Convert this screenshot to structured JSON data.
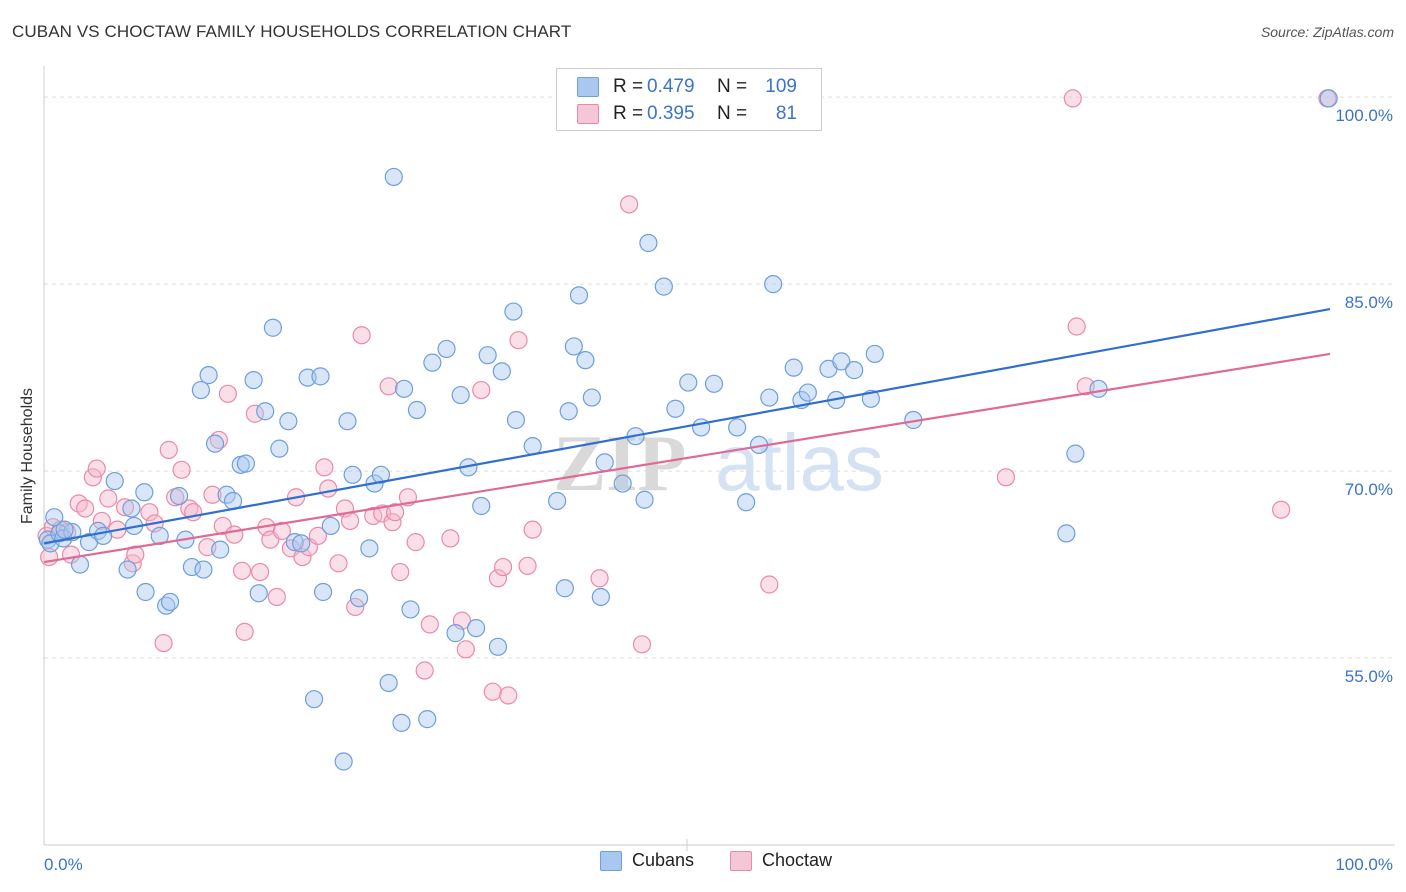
{
  "header": {
    "title": "CUBAN VS CHOCTAW FAMILY HOUSEHOLDS CORRELATION CHART",
    "source": "Source: ZipAtlas.com"
  },
  "legend_top": {
    "rows": [
      {
        "r_label": "R =",
        "r_value": "0.479",
        "n_label": "N =",
        "n_value": "109"
      },
      {
        "r_label": "R =",
        "r_value": "0.395",
        "n_label": "N =",
        "n_value": "81"
      }
    ]
  },
  "legend_bottom": {
    "items": [
      {
        "label": "Cubans"
      },
      {
        "label": "Choctaw"
      }
    ]
  },
  "watermark": {
    "part1": "ZIP",
    "part2": "atlas"
  },
  "colors": {
    "cubans_fill": "#a9c8f0",
    "cubans_stroke": "#6e9fdc",
    "cubans_line": "#2f6fd0",
    "choctaw_fill": "#f5b8cb",
    "choctaw_stroke": "#ea8aa9",
    "choctaw_line": "#e06a94",
    "tick_label": "#3b74c8",
    "grid": "#dddddd"
  },
  "chart_data": {
    "type": "scatter",
    "title": "CUBAN VS CHOCTAW FAMILY HOUSEHOLDS CORRELATION CHART",
    "xlabel": "",
    "ylabel": "Family Households",
    "xlim": [
      0,
      100
    ],
    "ylim": [
      40,
      102.5
    ],
    "x_tick_labels": [
      "0.0%",
      "100.0%"
    ],
    "y_ticks": [
      55,
      70,
      85,
      100
    ],
    "y_tick_labels": [
      "55.0%",
      "70.0%",
      "85.0%",
      "100.0%"
    ],
    "grid": true,
    "legend_position": "bottom",
    "series": [
      {
        "name": "Cubans",
        "r": 0.479,
        "n": 109,
        "trend": {
          "x": [
            0,
            100
          ],
          "y": [
            64.2,
            83.0
          ]
        },
        "points": [
          [
            0.3,
            64.5
          ],
          [
            0.5,
            64.2
          ],
          [
            0.8,
            66.3
          ],
          [
            1.2,
            65.0
          ],
          [
            1.5,
            64.6
          ],
          [
            2.2,
            65.1
          ],
          [
            2.8,
            62.5
          ],
          [
            3.5,
            64.3
          ],
          [
            4.2,
            65.2
          ],
          [
            4.6,
            64.8
          ],
          [
            5.5,
            69.2
          ],
          [
            6.5,
            62.1
          ],
          [
            6.8,
            67.0
          ],
          [
            7.0,
            65.6
          ],
          [
            7.8,
            68.3
          ],
          [
            7.9,
            60.3
          ],
          [
            9.0,
            64.8
          ],
          [
            9.5,
            59.2
          ],
          [
            9.8,
            59.5
          ],
          [
            10.5,
            68.0
          ],
          [
            11.0,
            64.5
          ],
          [
            11.5,
            62.3
          ],
          [
            12.2,
            76.5
          ],
          [
            12.4,
            62.1
          ],
          [
            12.8,
            77.7
          ],
          [
            13.3,
            72.2
          ],
          [
            13.7,
            63.7
          ],
          [
            14.2,
            68.1
          ],
          [
            14.7,
            67.6
          ],
          [
            15.3,
            70.5
          ],
          [
            15.7,
            70.6
          ],
          [
            16.3,
            77.3
          ],
          [
            16.7,
            60.2
          ],
          [
            17.2,
            74.8
          ],
          [
            17.8,
            81.5
          ],
          [
            18.3,
            71.8
          ],
          [
            19.0,
            74.0
          ],
          [
            19.5,
            64.3
          ],
          [
            20.0,
            64.2
          ],
          [
            20.5,
            77.5
          ],
          [
            21.0,
            51.7
          ],
          [
            21.5,
            77.6
          ],
          [
            21.7,
            60.3
          ],
          [
            22.3,
            65.6
          ],
          [
            23.3,
            46.7
          ],
          [
            23.6,
            74.0
          ],
          [
            24.0,
            69.7
          ],
          [
            24.5,
            59.8
          ],
          [
            25.3,
            63.8
          ],
          [
            25.7,
            69.0
          ],
          [
            26.2,
            69.7
          ],
          [
            26.8,
            53.0
          ],
          [
            27.2,
            93.6
          ],
          [
            27.8,
            49.8
          ],
          [
            28.0,
            76.6
          ],
          [
            28.5,
            58.9
          ],
          [
            29.0,
            74.9
          ],
          [
            29.8,
            50.1
          ],
          [
            30.2,
            78.7
          ],
          [
            31.3,
            79.8
          ],
          [
            32.0,
            57.0
          ],
          [
            32.4,
            76.1
          ],
          [
            33.0,
            70.3
          ],
          [
            33.6,
            57.4
          ],
          [
            34.0,
            67.2
          ],
          [
            34.5,
            79.3
          ],
          [
            35.3,
            55.9
          ],
          [
            35.6,
            78.0
          ],
          [
            36.5,
            82.8
          ],
          [
            36.7,
            74.1
          ],
          [
            38.0,
            72.0
          ],
          [
            39.9,
            67.6
          ],
          [
            40.5,
            60.6
          ],
          [
            40.8,
            74.8
          ],
          [
            41.2,
            80.0
          ],
          [
            41.6,
            84.1
          ],
          [
            42.1,
            78.9
          ],
          [
            42.6,
            75.9
          ],
          [
            43.3,
            59.9
          ],
          [
            43.6,
            70.7
          ],
          [
            45.0,
            69.0
          ],
          [
            46.0,
            72.8
          ],
          [
            46.7,
            67.7
          ],
          [
            47.0,
            88.3
          ],
          [
            48.2,
            84.8
          ],
          [
            49.1,
            75.0
          ],
          [
            50.1,
            77.1
          ],
          [
            51.1,
            73.5
          ],
          [
            52.1,
            77.0
          ],
          [
            53.9,
            73.5
          ],
          [
            54.6,
            67.5
          ],
          [
            55.6,
            72.1
          ],
          [
            56.4,
            75.9
          ],
          [
            56.7,
            85.0
          ],
          [
            58.3,
            78.3
          ],
          [
            58.9,
            75.7
          ],
          [
            59.4,
            76.3
          ],
          [
            61.0,
            78.2
          ],
          [
            61.6,
            75.7
          ],
          [
            62.0,
            78.8
          ],
          [
            63.0,
            78.1
          ],
          [
            64.3,
            75.8
          ],
          [
            64.6,
            79.4
          ],
          [
            67.6,
            74.1
          ],
          [
            79.5,
            65.0
          ],
          [
            80.2,
            71.4
          ],
          [
            82.0,
            76.6
          ],
          [
            99.9,
            99.9
          ],
          [
            1.6,
            65.3
          ]
        ]
      },
      {
        "name": "Choctaw",
        "r": 0.395,
        "n": 81,
        "trend": {
          "x": [
            0,
            100
          ],
          "y": [
            62.7,
            79.4
          ]
        },
        "points": [
          [
            0.2,
            64.8
          ],
          [
            0.4,
            63.1
          ],
          [
            0.7,
            65.5
          ],
          [
            1.3,
            65.3
          ],
          [
            1.8,
            65.1
          ],
          [
            2.1,
            63.3
          ],
          [
            2.7,
            67.4
          ],
          [
            3.2,
            67.0
          ],
          [
            3.8,
            69.5
          ],
          [
            4.1,
            70.2
          ],
          [
            4.5,
            66.0
          ],
          [
            5.0,
            67.8
          ],
          [
            5.7,
            65.3
          ],
          [
            6.3,
            67.1
          ],
          [
            6.9,
            62.6
          ],
          [
            7.1,
            63.3
          ],
          [
            8.2,
            66.7
          ],
          [
            8.6,
            65.8
          ],
          [
            9.3,
            56.2
          ],
          [
            9.7,
            71.7
          ],
          [
            10.2,
            67.9
          ],
          [
            10.7,
            70.1
          ],
          [
            11.3,
            67.0
          ],
          [
            11.6,
            66.7
          ],
          [
            12.7,
            63.9
          ],
          [
            13.1,
            68.1
          ],
          [
            13.6,
            72.5
          ],
          [
            13.9,
            65.6
          ],
          [
            14.3,
            76.2
          ],
          [
            14.8,
            64.9
          ],
          [
            15.4,
            62.0
          ],
          [
            15.6,
            57.1
          ],
          [
            16.4,
            74.6
          ],
          [
            16.8,
            61.9
          ],
          [
            17.3,
            65.5
          ],
          [
            17.6,
            64.5
          ],
          [
            18.1,
            59.9
          ],
          [
            18.5,
            65.2
          ],
          [
            19.2,
            63.8
          ],
          [
            19.6,
            67.9
          ],
          [
            20.1,
            63.1
          ],
          [
            20.6,
            63.9
          ],
          [
            21.3,
            64.8
          ],
          [
            21.8,
            70.3
          ],
          [
            22.1,
            68.6
          ],
          [
            22.9,
            62.6
          ],
          [
            23.4,
            67.0
          ],
          [
            23.8,
            66.0
          ],
          [
            24.2,
            59.1
          ],
          [
            24.7,
            80.9
          ],
          [
            25.6,
            66.4
          ],
          [
            26.3,
            66.6
          ],
          [
            26.8,
            76.8
          ],
          [
            27.1,
            65.9
          ],
          [
            27.3,
            66.7
          ],
          [
            27.7,
            61.9
          ],
          [
            28.3,
            67.9
          ],
          [
            28.9,
            64.3
          ],
          [
            29.6,
            54.0
          ],
          [
            30.0,
            57.7
          ],
          [
            31.6,
            64.6
          ],
          [
            32.5,
            58.0
          ],
          [
            32.8,
            55.7
          ],
          [
            34.0,
            76.5
          ],
          [
            34.9,
            52.3
          ],
          [
            35.3,
            61.4
          ],
          [
            35.7,
            62.3
          ],
          [
            36.1,
            52.0
          ],
          [
            36.9,
            80.5
          ],
          [
            37.6,
            62.4
          ],
          [
            38.0,
            65.3
          ],
          [
            43.2,
            61.4
          ],
          [
            45.5,
            91.4
          ],
          [
            46.5,
            56.1
          ],
          [
            56.4,
            60.9
          ],
          [
            74.8,
            69.5
          ],
          [
            80.3,
            81.6
          ],
          [
            81.0,
            76.8
          ],
          [
            96.2,
            66.9
          ],
          [
            99.8,
            99.9
          ],
          [
            80.0,
            99.9
          ]
        ]
      }
    ]
  }
}
